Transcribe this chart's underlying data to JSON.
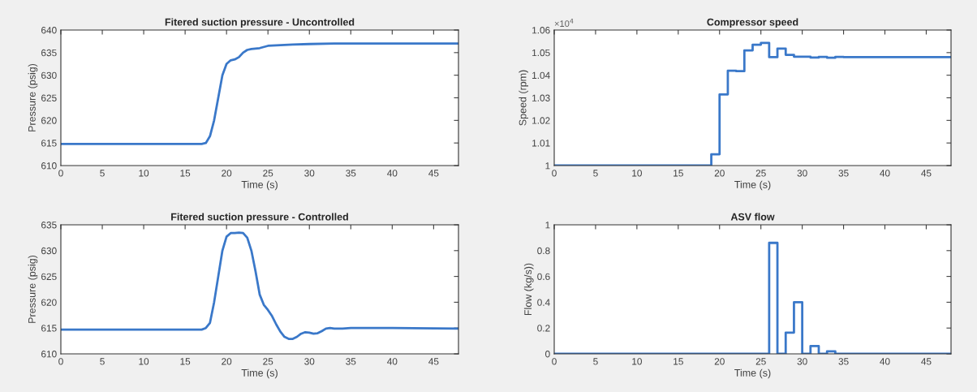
{
  "chart_data": [
    {
      "type": "line",
      "title": "Fitered suction pressure - Uncontrolled",
      "xlabel": "Time (s)",
      "ylabel": "Pressure (psig)",
      "xlim": [
        0,
        48
      ],
      "ylim": [
        610,
        640
      ],
      "xticks": [
        0,
        5,
        10,
        15,
        20,
        25,
        30,
        35,
        40,
        45
      ],
      "yticks": [
        610,
        615,
        620,
        625,
        630,
        635,
        640
      ],
      "series": [
        {
          "color": "#3a78c9",
          "x": [
            0,
            17,
            17.5,
            18,
            18.5,
            19,
            19.5,
            20,
            20.5,
            21,
            21.5,
            22,
            22.5,
            23,
            24,
            25,
            26,
            28,
            30,
            33,
            48
          ],
          "values": [
            614.8,
            614.8,
            615,
            616.5,
            620,
            625,
            630,
            632.5,
            633.3,
            633.5,
            634,
            635,
            635.6,
            635.8,
            636,
            636.5,
            636.6,
            636.8,
            636.9,
            637,
            637
          ]
        }
      ]
    },
    {
      "type": "step",
      "title": "Compressor speed",
      "xlabel": "Time (s)",
      "ylabel": "Speed (rpm)",
      "annotations": [
        "×10$^{4}$"
      ],
      "xlim": [
        0,
        48
      ],
      "ylim": [
        1,
        1.06
      ],
      "xticks": [
        0,
        5,
        10,
        15,
        20,
        25,
        30,
        35,
        40,
        45
      ],
      "yticks": [
        1,
        1.01,
        1.02,
        1.03,
        1.04,
        1.05,
        1.06
      ],
      "series": [
        {
          "color": "#3a78c9",
          "x": [
            0,
            19,
            20,
            21,
            22,
            23,
            24,
            25,
            26,
            27,
            28,
            29,
            31,
            32,
            33,
            34,
            35,
            48
          ],
          "values": [
            1.0,
            1.005,
            1.0315,
            1.042,
            1.0418,
            1.051,
            1.0535,
            1.0543,
            1.048,
            1.0518,
            1.049,
            1.0482,
            1.0478,
            1.0481,
            1.0477,
            1.0481,
            1.048,
            1.048
          ]
        }
      ]
    },
    {
      "type": "line",
      "title": "Fitered suction pressure - Controlled",
      "xlabel": "Time (s)",
      "ylabel": "Pressure (psig)",
      "xlim": [
        0,
        48
      ],
      "ylim": [
        610,
        635
      ],
      "xticks": [
        0,
        5,
        10,
        15,
        20,
        25,
        30,
        35,
        40,
        45
      ],
      "yticks": [
        610,
        615,
        620,
        625,
        630,
        635
      ],
      "series": [
        {
          "color": "#3a78c9",
          "x": [
            0,
            17,
            17.5,
            18,
            18.5,
            19,
            19.5,
            20,
            20.5,
            21,
            21.5,
            22,
            22.5,
            23,
            23.5,
            24,
            24.5,
            25,
            25.5,
            26,
            26.5,
            27,
            27.5,
            28,
            28.5,
            29,
            29.5,
            30,
            30.5,
            31,
            31.5,
            32,
            32.5,
            33,
            34,
            35,
            40,
            48
          ],
          "values": [
            614.7,
            614.7,
            615,
            616,
            620,
            625,
            630,
            632.7,
            633.4,
            633.4,
            633.5,
            633.4,
            632.5,
            630,
            626,
            621.5,
            619.5,
            618.5,
            617.3,
            615.7,
            614.3,
            613.3,
            612.9,
            612.9,
            613.3,
            613.9,
            614.2,
            614.1,
            613.9,
            614,
            614.4,
            614.9,
            615,
            614.9,
            614.9,
            615,
            615,
            614.9
          ]
        }
      ]
    },
    {
      "type": "step",
      "title": "ASV flow",
      "xlabel": "Time (s)",
      "ylabel": "Flow (kg/s))",
      "xlim": [
        0,
        48
      ],
      "ylim": [
        0,
        1
      ],
      "xticks": [
        0,
        5,
        10,
        15,
        20,
        25,
        30,
        35,
        40,
        45
      ],
      "yticks": [
        0,
        0.2,
        0.4,
        0.6,
        0.8,
        1
      ],
      "series": [
        {
          "color": "#3a78c9",
          "x": [
            0,
            26,
            27,
            28,
            29,
            30,
            31,
            32,
            33,
            34,
            48
          ],
          "values": [
            0,
            0.86,
            0,
            0.165,
            0.4,
            0,
            0.06,
            0,
            0.02,
            0,
            0
          ]
        }
      ]
    }
  ]
}
